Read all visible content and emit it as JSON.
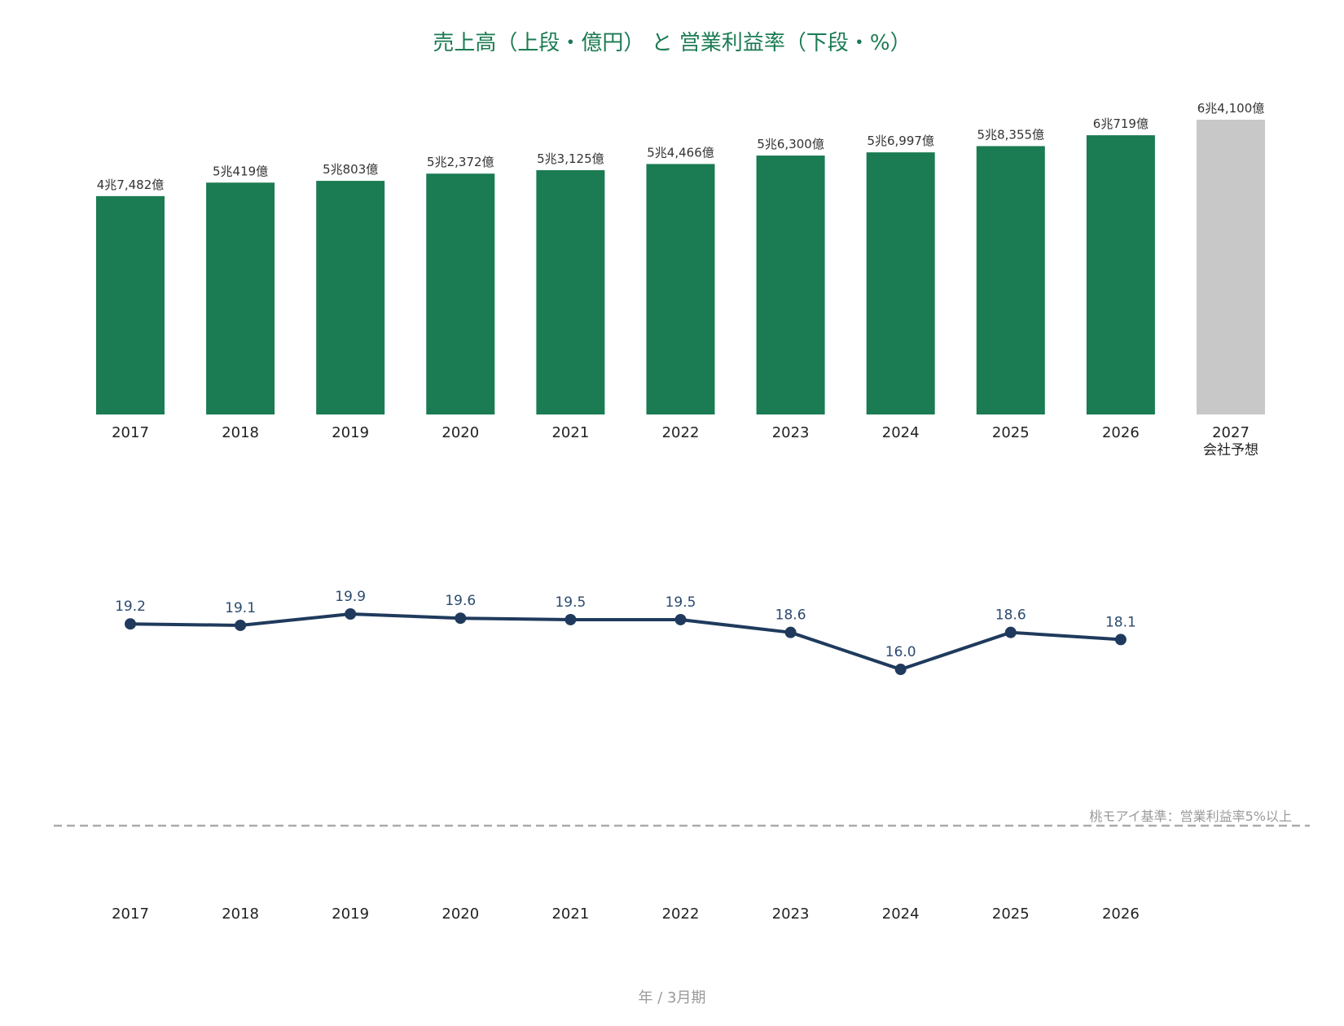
{
  "title": "売上高（上段・億円） と 営業利益率（下段・%）",
  "footer_label": "年 / 3月期",
  "colors": {
    "actual": "#1b7b52",
    "forecast": "#c8c8c8",
    "line": "#1f3a5c",
    "reference": "#aaaaaa",
    "title": "#1b7b52"
  },
  "chart_data": [
    {
      "type": "bar",
      "categories": [
        "2017",
        "2018",
        "2019",
        "2020",
        "2021",
        "2022",
        "2023",
        "2024",
        "2025",
        "2026",
        "2027"
      ],
      "category_sublabels": [
        "",
        "",
        "",
        "",
        "",
        "",
        "",
        "",
        "",
        "",
        "会社予想"
      ],
      "values": [
        47482,
        50419,
        50803,
        52372,
        53125,
        54466,
        56300,
        56997,
        58355,
        60719,
        64100
      ],
      "value_labels": [
        "4兆7,482億",
        "5兆419億",
        "5兆803億",
        "5兆2,372億",
        "5兆3,125億",
        "5兆4,466億",
        "5兆6,300億",
        "5兆6,997億",
        "5兆8,355億",
        "6兆719億",
        "6兆4,100億"
      ],
      "forecast": [
        false,
        false,
        false,
        false,
        false,
        false,
        false,
        false,
        false,
        false,
        true
      ],
      "unit": "億円",
      "ylim": [
        0,
        64100
      ]
    },
    {
      "type": "line",
      "categories": [
        "2017",
        "2018",
        "2019",
        "2020",
        "2021",
        "2022",
        "2023",
        "2024",
        "2025",
        "2026"
      ],
      "values": [
        19.2,
        19.1,
        19.9,
        19.6,
        19.5,
        19.5,
        18.6,
        16.0,
        18.6,
        18.1
      ],
      "value_labels": [
        "19.2",
        "19.1",
        "19.9",
        "19.6",
        "19.5",
        "19.5",
        "18.6",
        "16.0",
        "18.6",
        "18.1"
      ],
      "unit": "%",
      "ylim": [
        5,
        19.9
      ],
      "reference_line": {
        "value": 5,
        "label": "桃モアイ基準：営業利益率5%以上",
        "style": "dashed"
      }
    }
  ]
}
